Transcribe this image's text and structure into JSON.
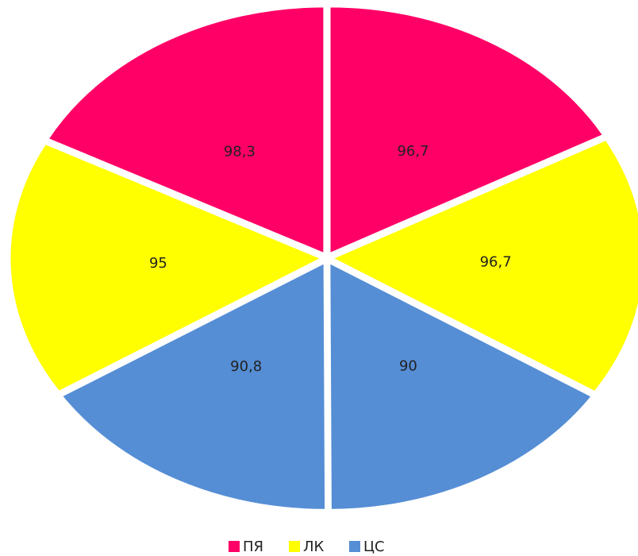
{
  "chart_data": {
    "type": "pie",
    "series": [
      {
        "name": "ПЯ",
        "color": "#ff0066",
        "values": [
          96.7,
          98.3
        ],
        "value_labels": [
          "96,7",
          "98,3"
        ]
      },
      {
        "name": "ЛК",
        "color": "#ffff00",
        "values": [
          96.7,
          95
        ],
        "value_labels": [
          "96,7",
          "95"
        ]
      },
      {
        "name": "ЦС",
        "color": "#558ed5",
        "values": [
          90,
          90.8
        ],
        "value_labels": [
          "90",
          "90,8"
        ]
      }
    ],
    "legend": "bottom"
  }
}
